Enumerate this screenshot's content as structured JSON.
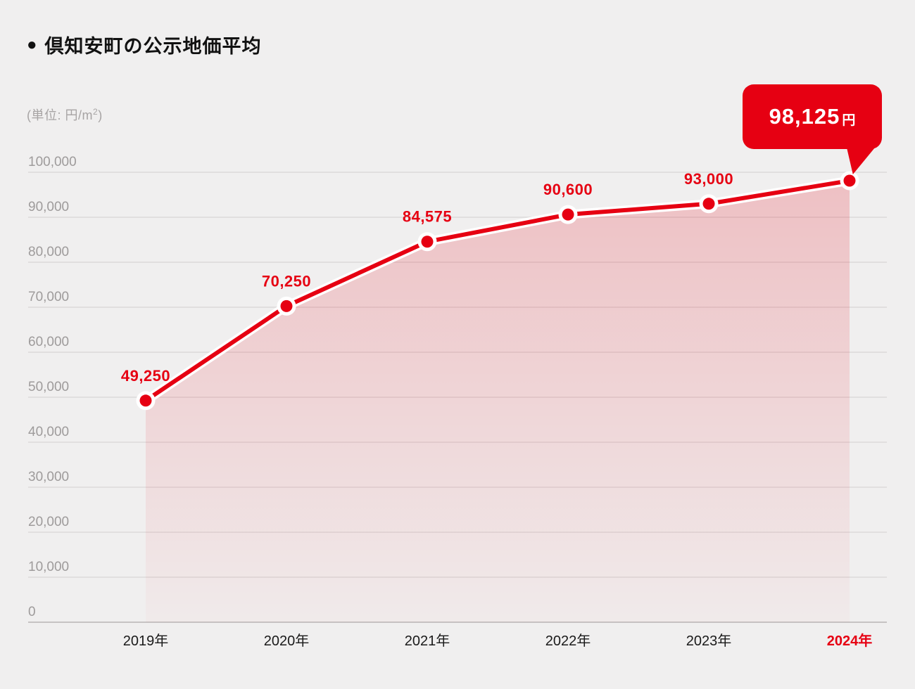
{
  "title": {
    "bullet": "●",
    "text": "倶知安町の公示地価平均"
  },
  "unit_label": {
    "prefix": "(単位: 円/m",
    "superscript": "2",
    "suffix": ")"
  },
  "callout": {
    "value": "98,125",
    "suffix": "円"
  },
  "colors": {
    "accent_red": "#e60012",
    "background": "#f0efef",
    "gridline": "#dcdada",
    "gridline_zero": "#c6c3c3",
    "y_tick_label": "#9e9b9b",
    "x_tick_label": "#1a1a1a",
    "callout_text": "#ffffff"
  },
  "chart_data": {
    "type": "area",
    "title": "倶知安町の公示地価平均",
    "ylabel": "(単位: 円/m2)",
    "categories": [
      "2019年",
      "2020年",
      "2021年",
      "2022年",
      "2023年",
      "2024年"
    ],
    "values": [
      49250,
      70250,
      84575,
      90600,
      93000,
      98125
    ],
    "point_labels": [
      "49,250",
      "70,250",
      "84,575",
      "90,600",
      "93,000"
    ],
    "callout_label": "98,125円",
    "ylim": [
      0,
      100000
    ],
    "ytick_step": 10000,
    "ytick_labels": [
      "0",
      "10,000",
      "20,000",
      "30,000",
      "40,000",
      "50,000",
      "60,000",
      "70,000",
      "80,000",
      "90,000",
      "100,000"
    ],
    "grid": true,
    "legend": false,
    "highlight_last_category": true
  }
}
